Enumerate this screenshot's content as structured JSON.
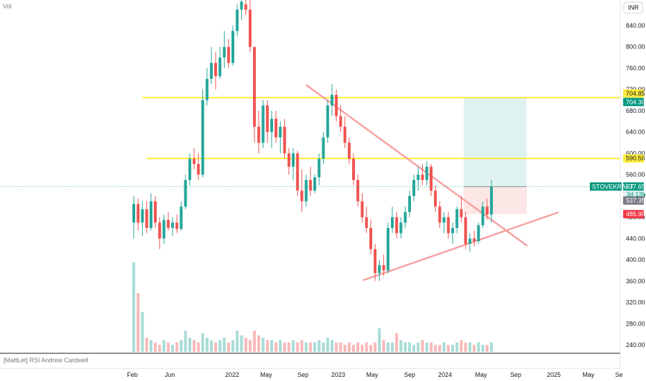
{
  "header": {
    "vol_label": "Vol",
    "currency_button": "INR"
  },
  "indicator": {
    "label": "[MattLet] RSI Andrew Cardwell"
  },
  "colors": {
    "up": "#26a69a",
    "down": "#ef5350",
    "level": "#ffeb3b",
    "trendline": "#f7a1a1",
    "profit": "#e0f2ef",
    "loss": "#fde6e6"
  },
  "chart_data": {
    "type": "candlestick",
    "symbol": "STOVEKRAFT",
    "y_ticks": [
      "840.00",
      "800.00",
      "760.00",
      "720.00",
      "680.00",
      "640.00",
      "600.00",
      "560.00",
      "520.00",
      "480.00",
      "440.00",
      "400.00",
      "360.00",
      "320.00",
      "280.00",
      "240.00"
    ],
    "x_ticks": [
      "Feb",
      "Jun",
      "2022",
      "May",
      "Sep",
      "2023",
      "May",
      "Sep",
      "2024",
      "May",
      "Sep",
      "2025",
      "May",
      "Se"
    ],
    "ylim": [
      210,
      885
    ],
    "horizontal_levels": [
      704.85,
      590.5
    ],
    "trendlines": [
      {
        "from": {
          "date": "2022-09-15",
          "price": 728
        },
        "to": {
          "date": "2024-10-01",
          "price": 427
        }
      },
      {
        "from": {
          "date": "2023-03-28",
          "price": 362
        },
        "to": {
          "date": "2025-01-15",
          "price": 489
        }
      }
    ],
    "position": {
      "entry": 537.35,
      "target": 704.3,
      "stop": 485.9,
      "start": "2024-03-01",
      "end": "2024-10-01"
    },
    "price_tags": [
      {
        "value": "704.85",
        "price": 704.85,
        "style": "level"
      },
      {
        "value": "704.30",
        "price": 704.3,
        "style": "target"
      },
      {
        "value": "590.50",
        "price": 590.5,
        "style": "level"
      },
      {
        "value": "537.65",
        "price": 537.65,
        "style": "last",
        "name": "STOVEKRAFT",
        "sub": "3d 13h"
      },
      {
        "value": "537.35",
        "price": 537.35,
        "style": "entry"
      },
      {
        "value": "485.90",
        "price": 485.9,
        "style": "stop"
      }
    ],
    "ohlc_weekly": [
      {
        "o": 470,
        "h": 520,
        "l": 440,
        "c": 505
      },
      {
        "o": 505,
        "h": 515,
        "l": 455,
        "c": 470
      },
      {
        "o": 470,
        "h": 510,
        "l": 445,
        "c": 495
      },
      {
        "o": 495,
        "h": 510,
        "l": 450,
        "c": 460
      },
      {
        "o": 460,
        "h": 525,
        "l": 455,
        "c": 510
      },
      {
        "o": 510,
        "h": 520,
        "l": 460,
        "c": 470
      },
      {
        "o": 470,
        "h": 480,
        "l": 420,
        "c": 440
      },
      {
        "o": 440,
        "h": 485,
        "l": 430,
        "c": 475
      },
      {
        "o": 475,
        "h": 490,
        "l": 455,
        "c": 460
      },
      {
        "o": 460,
        "h": 480,
        "l": 445,
        "c": 470
      },
      {
        "o": 470,
        "h": 485,
        "l": 450,
        "c": 458
      },
      {
        "o": 458,
        "h": 510,
        "l": 455,
        "c": 500
      },
      {
        "o": 500,
        "h": 560,
        "l": 495,
        "c": 550
      },
      {
        "o": 550,
        "h": 600,
        "l": 540,
        "c": 590
      },
      {
        "o": 590,
        "h": 610,
        "l": 570,
        "c": 580
      },
      {
        "o": 580,
        "h": 600,
        "l": 550,
        "c": 560
      },
      {
        "o": 560,
        "h": 720,
        "l": 555,
        "c": 700
      },
      {
        "o": 700,
        "h": 760,
        "l": 690,
        "c": 740
      },
      {
        "o": 740,
        "h": 800,
        "l": 730,
        "c": 770
      },
      {
        "o": 770,
        "h": 790,
        "l": 720,
        "c": 745
      },
      {
        "o": 745,
        "h": 800,
        "l": 740,
        "c": 780
      },
      {
        "o": 780,
        "h": 830,
        "l": 760,
        "c": 800
      },
      {
        "o": 800,
        "h": 815,
        "l": 760,
        "c": 770
      },
      {
        "o": 770,
        "h": 840,
        "l": 765,
        "c": 830
      },
      {
        "o": 830,
        "h": 880,
        "l": 820,
        "c": 870
      },
      {
        "o": 870,
        "h": 895,
        "l": 850,
        "c": 885
      },
      {
        "o": 880,
        "h": 900,
        "l": 860,
        "c": 870
      },
      {
        "o": 870,
        "h": 890,
        "l": 790,
        "c": 800
      },
      {
        "o": 800,
        "h": 700,
        "l": 620,
        "c": 650
      },
      {
        "o": 650,
        "h": 680,
        "l": 600,
        "c": 620
      },
      {
        "o": 620,
        "h": 700,
        "l": 610,
        "c": 690
      },
      {
        "o": 690,
        "h": 700,
        "l": 620,
        "c": 640
      },
      {
        "o": 640,
        "h": 680,
        "l": 610,
        "c": 665
      },
      {
        "o": 665,
        "h": 680,
        "l": 620,
        "c": 630
      },
      {
        "o": 630,
        "h": 660,
        "l": 600,
        "c": 650
      },
      {
        "o": 650,
        "h": 665,
        "l": 590,
        "c": 600
      },
      {
        "o": 600,
        "h": 610,
        "l": 560,
        "c": 575
      },
      {
        "o": 575,
        "h": 610,
        "l": 550,
        "c": 600
      },
      {
        "o": 600,
        "h": 605,
        "l": 520,
        "c": 530
      },
      {
        "o": 530,
        "h": 570,
        "l": 490,
        "c": 510
      },
      {
        "o": 510,
        "h": 560,
        "l": 500,
        "c": 550
      },
      {
        "o": 550,
        "h": 575,
        "l": 520,
        "c": 530
      },
      {
        "o": 530,
        "h": 560,
        "l": 525,
        "c": 555
      },
      {
        "o": 555,
        "h": 600,
        "l": 540,
        "c": 590
      },
      {
        "o": 590,
        "h": 640,
        "l": 580,
        "c": 630
      },
      {
        "o": 630,
        "h": 700,
        "l": 620,
        "c": 690
      },
      {
        "o": 690,
        "h": 730,
        "l": 670,
        "c": 710
      },
      {
        "o": 710,
        "h": 720,
        "l": 660,
        "c": 670
      },
      {
        "o": 670,
        "h": 690,
        "l": 640,
        "c": 650
      },
      {
        "o": 650,
        "h": 670,
        "l": 610,
        "c": 620
      },
      {
        "o": 620,
        "h": 630,
        "l": 580,
        "c": 590
      },
      {
        "o": 590,
        "h": 600,
        "l": 540,
        "c": 550
      },
      {
        "o": 550,
        "h": 560,
        "l": 500,
        "c": 510
      },
      {
        "o": 510,
        "h": 525,
        "l": 470,
        "c": 480
      },
      {
        "o": 480,
        "h": 500,
        "l": 450,
        "c": 460
      },
      {
        "o": 460,
        "h": 475,
        "l": 410,
        "c": 420
      },
      {
        "o": 420,
        "h": 430,
        "l": 360,
        "c": 375
      },
      {
        "o": 375,
        "h": 400,
        "l": 360,
        "c": 390
      },
      {
        "o": 390,
        "h": 410,
        "l": 370,
        "c": 380
      },
      {
        "o": 380,
        "h": 470,
        "l": 375,
        "c": 460
      },
      {
        "o": 460,
        "h": 500,
        "l": 450,
        "c": 480
      },
      {
        "o": 480,
        "h": 490,
        "l": 440,
        "c": 450
      },
      {
        "o": 450,
        "h": 480,
        "l": 440,
        "c": 470
      },
      {
        "o": 470,
        "h": 500,
        "l": 460,
        "c": 490
      },
      {
        "o": 490,
        "h": 530,
        "l": 480,
        "c": 520
      },
      {
        "o": 520,
        "h": 560,
        "l": 510,
        "c": 550
      },
      {
        "o": 550,
        "h": 575,
        "l": 530,
        "c": 560
      },
      {
        "o": 560,
        "h": 580,
        "l": 540,
        "c": 550
      },
      {
        "o": 550,
        "h": 585,
        "l": 540,
        "c": 575
      },
      {
        "o": 575,
        "h": 580,
        "l": 520,
        "c": 530
      },
      {
        "o": 530,
        "h": 540,
        "l": 490,
        "c": 500
      },
      {
        "o": 500,
        "h": 510,
        "l": 460,
        "c": 470
      },
      {
        "o": 470,
        "h": 490,
        "l": 450,
        "c": 480
      },
      {
        "o": 480,
        "h": 490,
        "l": 440,
        "c": 450
      },
      {
        "o": 450,
        "h": 470,
        "l": 430,
        "c": 460
      },
      {
        "o": 460,
        "h": 500,
        "l": 450,
        "c": 495
      },
      {
        "o": 495,
        "h": 520,
        "l": 470,
        "c": 480
      },
      {
        "o": 480,
        "h": 490,
        "l": 420,
        "c": 430
      },
      {
        "o": 430,
        "h": 450,
        "l": 415,
        "c": 440
      },
      {
        "o": 440,
        "h": 455,
        "l": 425,
        "c": 435
      },
      {
        "o": 435,
        "h": 470,
        "l": 430,
        "c": 465
      },
      {
        "o": 465,
        "h": 510,
        "l": 460,
        "c": 500
      },
      {
        "o": 500,
        "h": 515,
        "l": 475,
        "c": 485
      },
      {
        "o": 485,
        "h": 550,
        "l": 470,
        "c": 537.65
      }
    ],
    "volume": [
      0.38,
      0.25,
      0.17,
      0.06,
      0.05,
      0.04,
      0.03,
      0.05,
      0.04,
      0.03,
      0.04,
      0.05,
      0.09,
      0.06,
      0.05,
      0.04,
      0.08,
      0.06,
      0.05,
      0.04,
      0.05,
      0.06,
      0.04,
      0.05,
      0.09,
      0.07,
      0.06,
      0.05,
      0.09,
      0.07,
      0.06,
      0.05,
      0.05,
      0.04,
      0.05,
      0.04,
      0.04,
      0.05,
      0.04,
      0.05,
      0.04,
      0.04,
      0.04,
      0.05,
      0.04,
      0.06,
      0.05,
      0.04,
      0.04,
      0.03,
      0.04,
      0.03,
      0.04,
      0.03,
      0.04,
      0.03,
      0.04,
      0.1,
      0.05,
      0.04,
      0.04,
      0.08,
      0.05,
      0.04,
      0.04,
      0.03,
      0.04,
      0.05,
      0.04,
      0.04,
      0.03,
      0.03,
      0.04,
      0.03,
      0.03,
      0.04,
      0.05,
      0.04,
      0.04,
      0.03,
      0.04,
      0.03,
      0.03,
      0.04,
      0.05
    ]
  }
}
